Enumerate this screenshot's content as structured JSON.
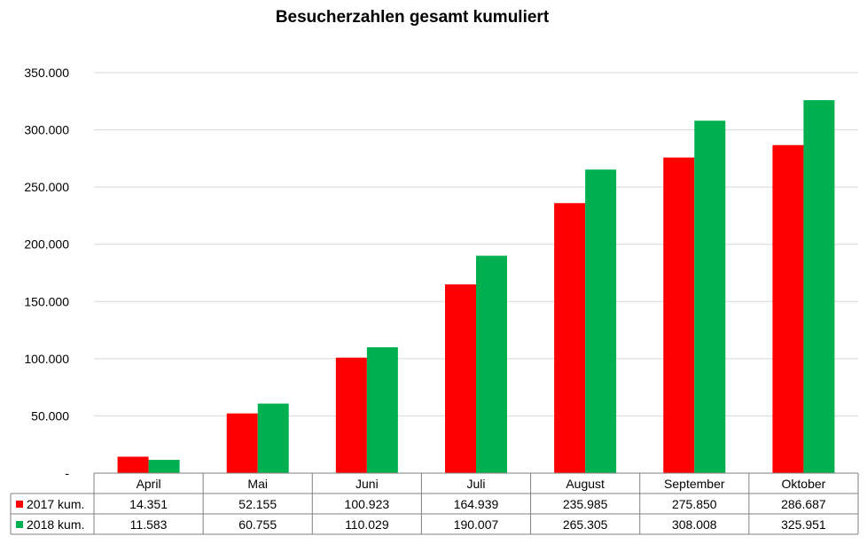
{
  "chart_data": {
    "type": "bar",
    "title": "Besucherzahlen gesamt kumuliert",
    "xlabel": "",
    "ylabel": "",
    "categories": [
      "April",
      "Mai",
      "Juni",
      "Juli",
      "August",
      "September",
      "Oktober"
    ],
    "series": [
      {
        "name": "2017 kum.",
        "color": "#ff0000",
        "values": [
          14351,
          52155,
          100923,
          164939,
          235985,
          275850,
          286687
        ],
        "labels": [
          "14.351",
          "52.155",
          "100.923",
          "164.939",
          "235.985",
          "275.850",
          "286.687"
        ]
      },
      {
        "name": "2018 kum.",
        "color": "#00b050",
        "values": [
          11583,
          60755,
          110029,
          190007,
          265305,
          308008,
          325951
        ],
        "labels": [
          "11.583",
          "60.755",
          "110.029",
          "190.007",
          "265.305",
          "308.008",
          "325.951"
        ]
      }
    ],
    "ylim": [
      0,
      350000
    ],
    "yticks": [
      0,
      50000,
      100000,
      150000,
      200000,
      250000,
      300000,
      350000
    ],
    "ytick_labels": [
      "-",
      "50.000",
      "100.000",
      "150.000",
      "200.000",
      "250.000",
      "300.000",
      "350.000"
    ],
    "grid": true,
    "legend": "data-table"
  }
}
